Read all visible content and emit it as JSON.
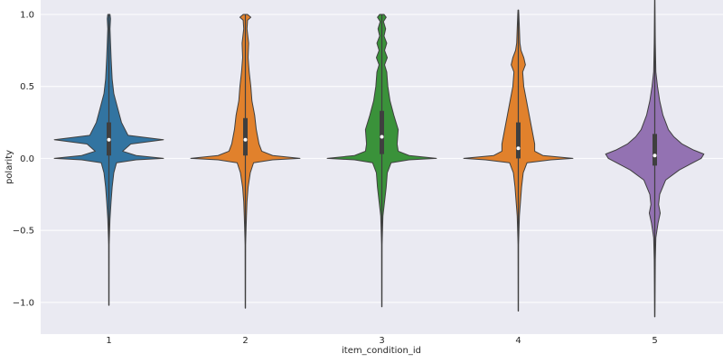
{
  "chart_data": {
    "type": "violin",
    "xlabel": "item_condition_id",
    "ylabel": "polarity",
    "grid": true,
    "ylim": [
      -1.22,
      1.1
    ],
    "yticks": [
      -1.0,
      -0.5,
      0.0,
      0.5,
      1.0
    ],
    "ytick_labels": [
      "−1.0",
      "−0.5",
      "0.0",
      "0.5",
      "1.0"
    ],
    "categories": [
      "1",
      "2",
      "3",
      "4",
      "5"
    ],
    "colors": [
      "#3274a1",
      "#e1812c",
      "#3a923a",
      "#e1812c",
      "#9372b2"
    ],
    "violins": [
      {
        "category": "1",
        "min": -1.02,
        "max": 1.0,
        "q1": 0.02,
        "median": 0.13,
        "q3": 0.25,
        "profile": [
          [
            -1.02,
            0.002
          ],
          [
            -0.6,
            0.004
          ],
          [
            -0.42,
            0.02
          ],
          [
            -0.3,
            0.04
          ],
          [
            -0.2,
            0.06
          ],
          [
            -0.1,
            0.09
          ],
          [
            -0.03,
            0.14
          ],
          [
            -0.01,
            0.5
          ],
          [
            0.0,
            1.0
          ],
          [
            0.02,
            0.5
          ],
          [
            0.05,
            0.25
          ],
          [
            0.1,
            0.4
          ],
          [
            0.13,
            1.0
          ],
          [
            0.16,
            0.35
          ],
          [
            0.25,
            0.23
          ],
          [
            0.35,
            0.16
          ],
          [
            0.45,
            0.09
          ],
          [
            0.55,
            0.06
          ],
          [
            0.7,
            0.04
          ],
          [
            0.8,
            0.03
          ],
          [
            0.9,
            0.02
          ],
          [
            0.97,
            0.03
          ],
          [
            1.0,
            0.02
          ]
        ]
      },
      {
        "category": "2",
        "min": -1.04,
        "max": 1.0,
        "q1": 0.02,
        "median": 0.13,
        "q3": 0.28,
        "profile": [
          [
            -1.04,
            0.002
          ],
          [
            -0.6,
            0.004
          ],
          [
            -0.4,
            0.02
          ],
          [
            -0.3,
            0.03
          ],
          [
            -0.2,
            0.05
          ],
          [
            -0.1,
            0.09
          ],
          [
            -0.03,
            0.15
          ],
          [
            -0.01,
            0.5
          ],
          [
            0.0,
            1.0
          ],
          [
            0.02,
            0.5
          ],
          [
            0.05,
            0.3
          ],
          [
            0.1,
            0.25
          ],
          [
            0.2,
            0.2
          ],
          [
            0.3,
            0.17
          ],
          [
            0.4,
            0.12
          ],
          [
            0.5,
            0.1
          ],
          [
            0.6,
            0.07
          ],
          [
            0.7,
            0.05
          ],
          [
            0.8,
            0.06
          ],
          [
            0.9,
            0.03
          ],
          [
            0.96,
            0.04
          ],
          [
            0.98,
            0.1
          ],
          [
            1.0,
            0.04
          ]
        ]
      },
      {
        "category": "3",
        "min": -1.03,
        "max": 1.0,
        "q1": 0.03,
        "median": 0.15,
        "q3": 0.33,
        "profile": [
          [
            -1.03,
            0.002
          ],
          [
            -0.6,
            0.004
          ],
          [
            -0.4,
            0.02
          ],
          [
            -0.3,
            0.05
          ],
          [
            -0.2,
            0.08
          ],
          [
            -0.1,
            0.1
          ],
          [
            -0.03,
            0.17
          ],
          [
            -0.01,
            0.5
          ],
          [
            0.0,
            1.0
          ],
          [
            0.02,
            0.5
          ],
          [
            0.05,
            0.3
          ],
          [
            0.1,
            0.28
          ],
          [
            0.2,
            0.3
          ],
          [
            0.3,
            0.22
          ],
          [
            0.4,
            0.15
          ],
          [
            0.5,
            0.11
          ],
          [
            0.6,
            0.09
          ],
          [
            0.65,
            0.05
          ],
          [
            0.7,
            0.1
          ],
          [
            0.75,
            0.05
          ],
          [
            0.8,
            0.09
          ],
          [
            0.85,
            0.04
          ],
          [
            0.9,
            0.07
          ],
          [
            0.95,
            0.03
          ],
          [
            0.98,
            0.08
          ],
          [
            1.0,
            0.04
          ]
        ]
      },
      {
        "category": "4",
        "min": -1.06,
        "max": 1.03,
        "q1": 0.0,
        "median": 0.07,
        "q3": 0.25,
        "profile": [
          [
            -1.06,
            0.002
          ],
          [
            -0.6,
            0.004
          ],
          [
            -0.4,
            0.02
          ],
          [
            -0.3,
            0.04
          ],
          [
            -0.2,
            0.06
          ],
          [
            -0.1,
            0.09
          ],
          [
            -0.03,
            0.16
          ],
          [
            -0.01,
            0.6
          ],
          [
            0.0,
            1.0
          ],
          [
            0.02,
            0.45
          ],
          [
            0.05,
            0.3
          ],
          [
            0.1,
            0.3
          ],
          [
            0.2,
            0.25
          ],
          [
            0.3,
            0.2
          ],
          [
            0.4,
            0.15
          ],
          [
            0.5,
            0.1
          ],
          [
            0.6,
            0.08
          ],
          [
            0.65,
            0.13
          ],
          [
            0.7,
            0.1
          ],
          [
            0.75,
            0.05
          ],
          [
            0.8,
            0.03
          ],
          [
            0.9,
            0.02
          ],
          [
            1.0,
            0.01
          ],
          [
            1.03,
            0.005
          ]
        ]
      },
      {
        "category": "5",
        "min": -1.1,
        "max": 1.1,
        "q1": -0.05,
        "median": 0.02,
        "q3": 0.17,
        "profile": [
          [
            -1.1,
            0.002
          ],
          [
            -0.7,
            0.01
          ],
          [
            -0.55,
            0.02
          ],
          [
            -0.45,
            0.06
          ],
          [
            -0.38,
            0.1
          ],
          [
            -0.32,
            0.07
          ],
          [
            -0.25,
            0.09
          ],
          [
            -0.15,
            0.2
          ],
          [
            -0.08,
            0.45
          ],
          [
            0.0,
            0.85
          ],
          [
            0.03,
            0.9
          ],
          [
            0.06,
            0.7
          ],
          [
            0.1,
            0.5
          ],
          [
            0.15,
            0.35
          ],
          [
            0.2,
            0.25
          ],
          [
            0.3,
            0.15
          ],
          [
            0.4,
            0.09
          ],
          [
            0.5,
            0.05
          ],
          [
            0.6,
            0.02
          ],
          [
            0.8,
            0.01
          ],
          [
            1.1,
            0.002
          ]
        ]
      }
    ]
  }
}
